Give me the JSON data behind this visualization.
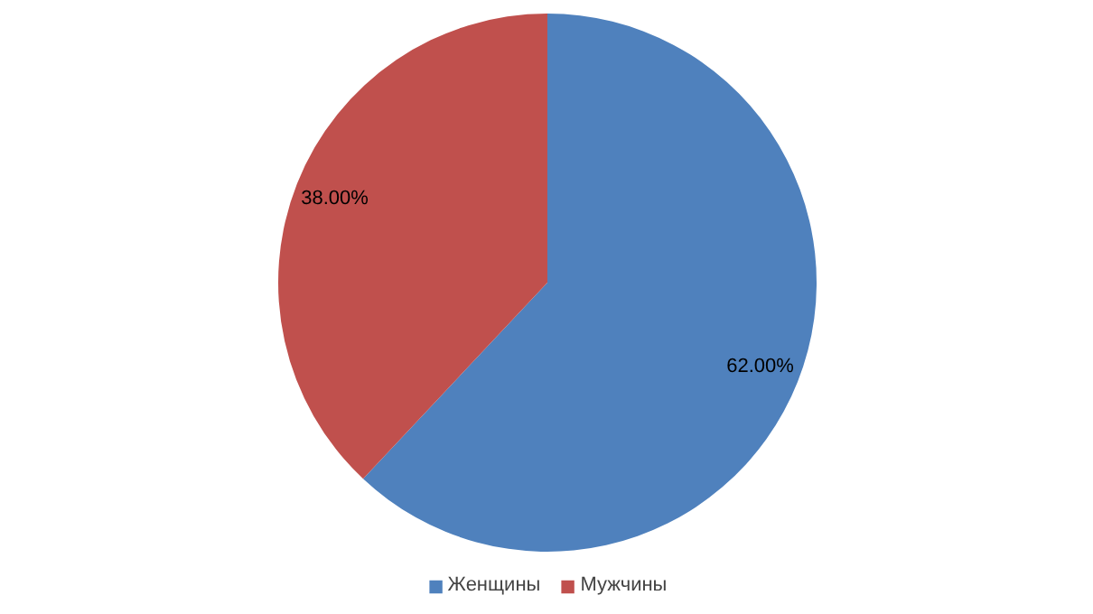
{
  "chart_data": {
    "type": "pie",
    "categories": [
      "Женщины",
      "Мужчины"
    ],
    "values": [
      62,
      38
    ],
    "colors": [
      "#4f81bd",
      "#c0504d"
    ],
    "value_labels": [
      "62.00%",
      "38.00%"
    ],
    "legend": "bottom"
  }
}
